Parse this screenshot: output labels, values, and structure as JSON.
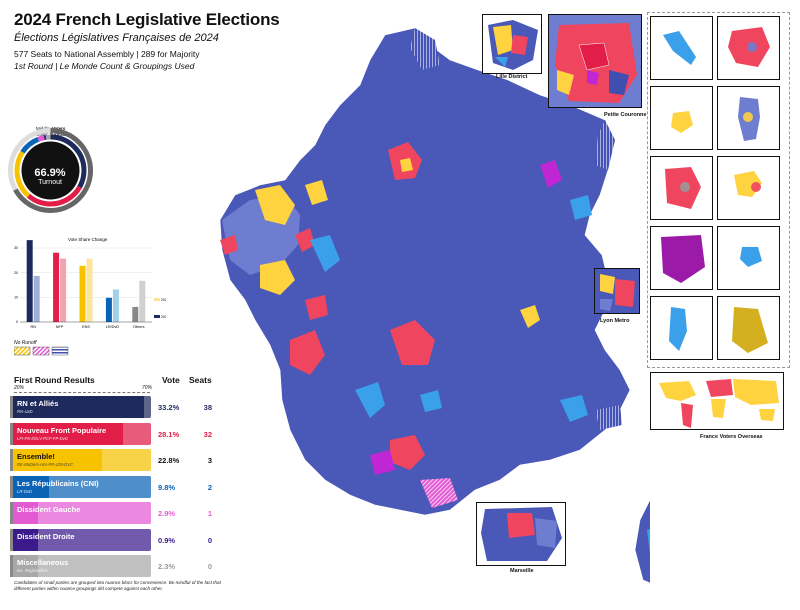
{
  "header": {
    "title": "2024 French Legislative Elections",
    "subtitle": "Élections Législatives Françaises de 2024",
    "meta_line1": "577 Seats to National Assembly | 289 for Majority",
    "meta_line2": "1st Round | Le Monde Count & Groupings Used"
  },
  "turnout": {
    "legend_line1_key": "Middle: ",
    "legend_line1_val": "Voters",
    "legend_line2_key": "Outer: ",
    "legend_line2_val": "Turnout",
    "value": "66.9%",
    "label": "Turnout",
    "turnout_fraction": 0.669
  },
  "vote_share_chart": {
    "title": "Vote Share Change",
    "legend": [
      "2022",
      "2024"
    ]
  },
  "no_runoff": {
    "label": "No Runoff"
  },
  "results": {
    "title": "First Round Results",
    "vote_header": "Vote",
    "seats_header": "Seats",
    "scale_left": "20%",
    "scale_right": "70%",
    "rows": [
      {
        "name": "RN et Alliés",
        "sub": "RN-UxD",
        "vote": "33.2%",
        "seats": "38",
        "color": "#1f2a5c",
        "text_color": "#1f2a5c"
      },
      {
        "name": "Nouveau Front Populaire",
        "sub": "LFI-PS-EELV-PCF-FP-DvG",
        "vote": "28.1%",
        "seats": "32",
        "color": "#e11d48",
        "text_color": "#e11d48"
      },
      {
        "name": "Ensemble!",
        "sub": "RE-MoDem-Hor-PR-UDI-DVC",
        "vote": "22.8%",
        "seats": "3",
        "color": "#f7c200",
        "text_color": "#111111"
      },
      {
        "name": "Les Républicains (CNI)",
        "sub": "LR-DvD",
        "vote": "9.8%",
        "seats": "2",
        "color": "#0b63b6",
        "text_color": "#0b63b6"
      },
      {
        "name": "Dissident Gauche",
        "sub": "",
        "vote": "2.9%",
        "seats": "1",
        "color": "#e35bd3",
        "text_color": "#e35bd3"
      },
      {
        "name": "Dissident Droite",
        "sub": "",
        "vote": "0.9%",
        "seats": "0",
        "color": "#3b1a8c",
        "text_color": "#3b1a8c"
      },
      {
        "name": "Miscellaneous",
        "sub": "Inc. Regionalists",
        "vote": "2.3%",
        "seats": "0",
        "color": "#a8a8a8",
        "text_color": "#9a9a9a"
      }
    ]
  },
  "footnote": "Candidates of small parties are grouped into nuance blocs for convenience. Be mindful of the fact that different parties within nuance groupings did compete against each other.",
  "insets": {
    "lille": "Lille District",
    "petite_couronne": "Petite Couronne",
    "lyon": "Lyon Metro",
    "marseille": "Marseille",
    "overseas": "France Voters Overseas"
  },
  "chart_data": {
    "type": "bar",
    "title": "Vote Share Change",
    "categories": [
      "RN",
      "NFP",
      "ENS",
      "LR/DvD",
      "Others"
    ],
    "series": [
      {
        "name": "2022",
        "values": [
          18.7,
          25.7,
          25.7,
          13.2,
          16.7
        ]
      },
      {
        "name": "2024",
        "values": [
          33.2,
          28.1,
          22.8,
          9.8,
          6.1
        ]
      }
    ],
    "ylim": [
      0,
      30
    ],
    "yticks": [
      0,
      10,
      20,
      30
    ],
    "colors_2022": [
      "#9fb0d8",
      "#f4a1b0",
      "#fde49a",
      "#9fd0ee",
      "#d0d0d0"
    ],
    "colors_2024": [
      "#1f2a5c",
      "#e11d48",
      "#f7c200",
      "#0b63b6",
      "#888888"
    ]
  },
  "colors": {
    "rn": "#3f4fb0",
    "rn_light": "#8f9cd8",
    "nfp": "#f0455f",
    "ens": "#ffd23f",
    "lr": "#3aa0ea",
    "dvg": "#c026d3",
    "misc": "#999999"
  }
}
